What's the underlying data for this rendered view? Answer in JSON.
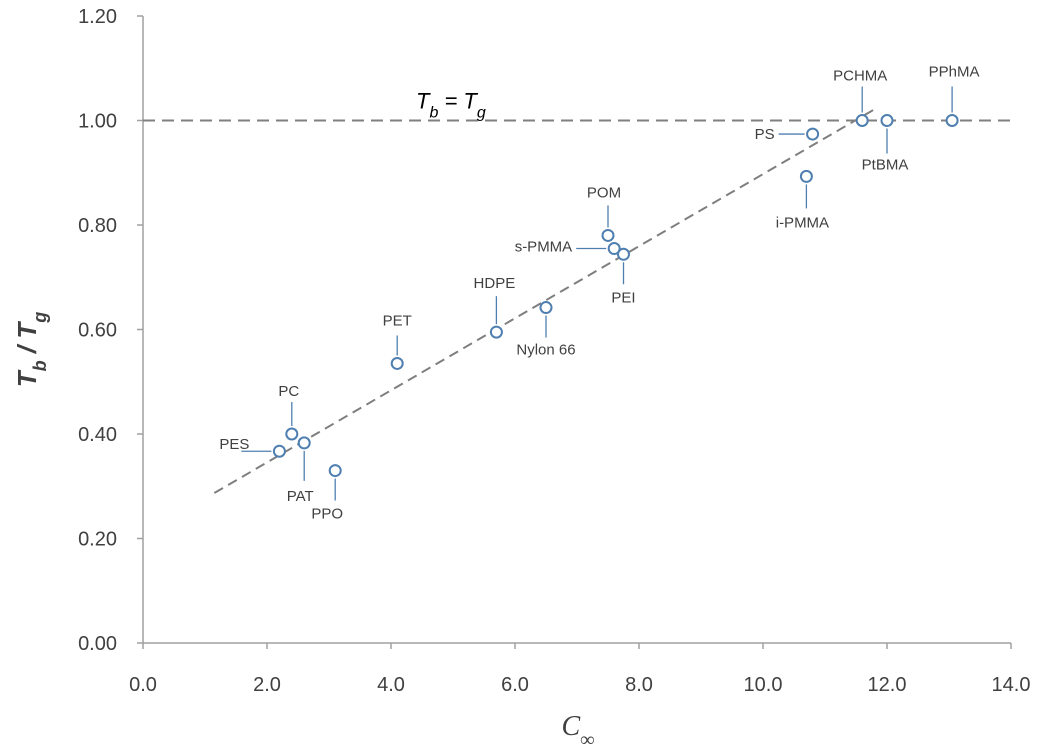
{
  "chart_data": {
    "type": "scatter",
    "title": "",
    "xlabel": "C∞",
    "ylabel": "Tb / Tg",
    "xlim": [
      0,
      14
    ],
    "ylim": [
      0,
      1.2
    ],
    "x_ticks": [
      "0.0",
      "2.0",
      "4.0",
      "6.0",
      "8.0",
      "10.0",
      "12.0",
      "14.0"
    ],
    "y_ticks": [
      "0.00",
      "0.20",
      "0.40",
      "0.60",
      "0.80",
      "1.00",
      "1.20"
    ],
    "grid": false,
    "reference_line": {
      "y": 1.0,
      "label": "Tb = Tg",
      "style": "dashed"
    },
    "trend_line": {
      "x": [
        1.15,
        11.85
      ],
      "y": [
        0.287,
        1.025
      ],
      "style": "dashed"
    },
    "points": [
      {
        "name": "PES",
        "x": 2.2,
        "y": 0.367
      },
      {
        "name": "PC",
        "x": 2.4,
        "y": 0.4
      },
      {
        "name": "PAT",
        "x": 2.6,
        "y": 0.383
      },
      {
        "name": "PPO",
        "x": 3.1,
        "y": 0.33
      },
      {
        "name": "PET",
        "x": 4.1,
        "y": 0.535
      },
      {
        "name": "HDPE",
        "x": 5.7,
        "y": 0.595
      },
      {
        "name": "Nylon 66",
        "x": 6.5,
        "y": 0.642
      },
      {
        "name": "POM",
        "x": 7.5,
        "y": 0.78
      },
      {
        "name": "s-PMMA",
        "x": 7.6,
        "y": 0.755
      },
      {
        "name": "PEI",
        "x": 7.75,
        "y": 0.744
      },
      {
        "name": "i-PMMA",
        "x": 10.7,
        "y": 0.893
      },
      {
        "name": "PS",
        "x": 10.8,
        "y": 0.974
      },
      {
        "name": "PCHMA",
        "x": 11.6,
        "y": 1.0
      },
      {
        "name": "PtBMA",
        "x": 12.0,
        "y": 1.0
      },
      {
        "name": "PPhMA",
        "x": 13.05,
        "y": 1.0
      }
    ],
    "colors": {
      "marker": "#4F7FB0",
      "line": "#7F7F7F",
      "axis": "#A0A0A0"
    }
  }
}
